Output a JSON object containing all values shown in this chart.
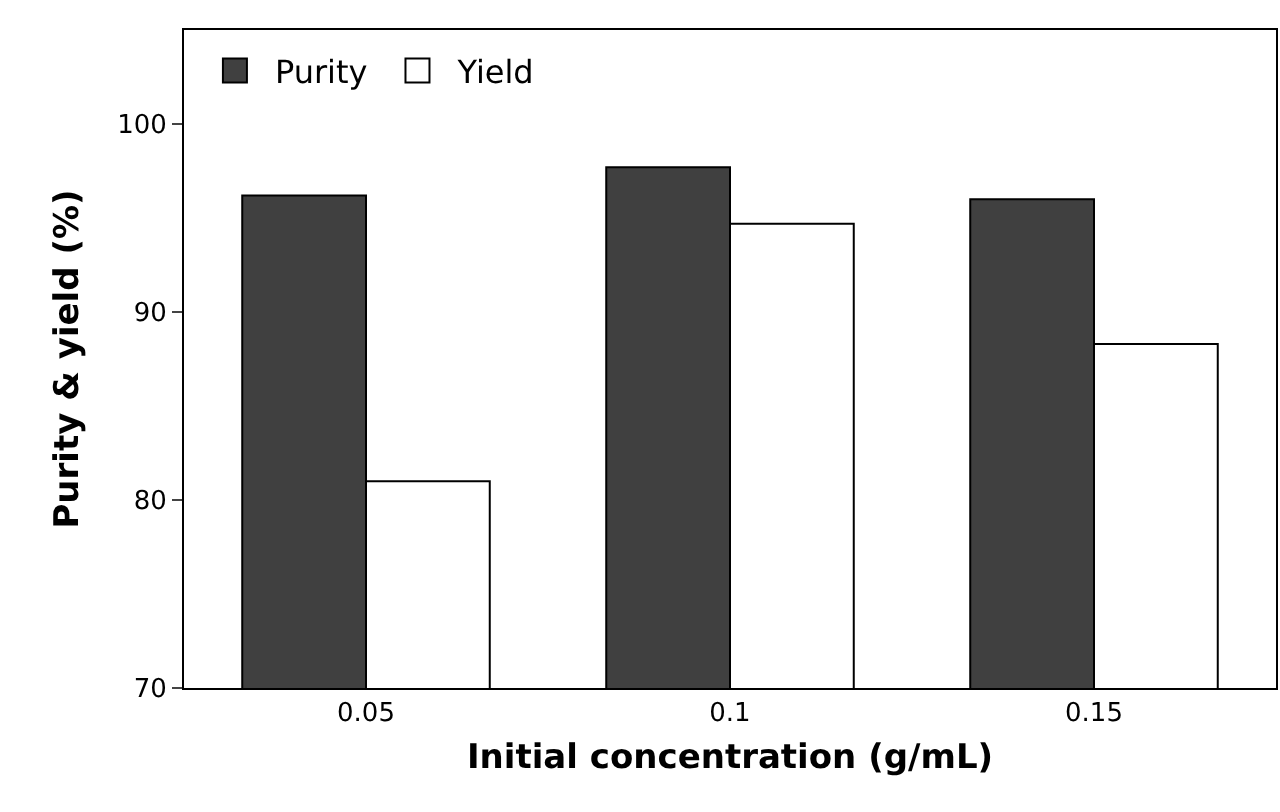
{
  "chart_data": {
    "type": "bar",
    "xlabel": "Initial concentration (g/mL)",
    "ylabel": "Purity & yield (%)",
    "categories": [
      "0.05",
      "0.1",
      "0.15"
    ],
    "series": [
      {
        "name": "Purity",
        "color": "#404040",
        "values": [
          96.2,
          97.7,
          96.0
        ]
      },
      {
        "name": "Yield",
        "color": "#ffffff",
        "values": [
          81.0,
          94.7,
          88.3
        ]
      }
    ],
    "ylim": [
      70,
      105
    ],
    "yticks": [
      70,
      80,
      90,
      100
    ],
    "grid": false,
    "legend": "top left"
  }
}
